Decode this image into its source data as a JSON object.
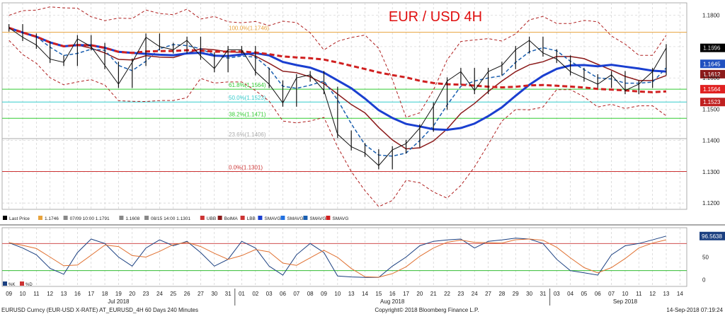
{
  "chart_data": {
    "type": "line",
    "title": "EUR / USD 4H",
    "main_panel": {
      "ylim": [
        1.118,
        1.184
      ],
      "y_ticks": [
        1.12,
        1.13,
        1.14,
        1.15,
        1.16,
        1.17,
        1.18
      ],
      "y_tick_labels": [
        "1.1200",
        "1.1300",
        "1.1400",
        "1.1500",
        "1.1600",
        "1.1700",
        "1.1800"
      ],
      "x_range": [
        0,
        49
      ],
      "price_series": {
        "name": "Last Price",
        "x": [
          0,
          1,
          2,
          3,
          4,
          5,
          6,
          7,
          8,
          9,
          10,
          11,
          12,
          13,
          14,
          15,
          16,
          17,
          18,
          19,
          20,
          21,
          22,
          23,
          24,
          25,
          26,
          27,
          28,
          29,
          30,
          31,
          32,
          33,
          34,
          35,
          36,
          37,
          38,
          39,
          40,
          41,
          42,
          43,
          44,
          45,
          46,
          47,
          48
        ],
        "y": [
          1.176,
          1.173,
          1.1705,
          1.166,
          1.165,
          1.1725,
          1.17,
          1.164,
          1.158,
          1.165,
          1.173,
          1.17,
          1.169,
          1.172,
          1.167,
          1.163,
          1.169,
          1.169,
          1.162,
          1.158,
          1.152,
          1.16,
          1.161,
          1.156,
          1.142,
          1.138,
          1.136,
          1.132,
          1.137,
          1.139,
          1.144,
          1.151,
          1.159,
          1.162,
          1.156,
          1.162,
          1.164,
          1.169,
          1.172,
          1.168,
          1.166,
          1.162,
          1.16,
          1.158,
          1.161,
          1.156,
          1.158,
          1.162,
          1.1696
        ]
      },
      "fib_levels": [
        {
          "label": "100.0%(1.1746)",
          "value": 1.1746,
          "color": "#e8a33c"
        },
        {
          "label": "61.8%(1.1564)",
          "value": 1.1564,
          "color": "#33cc33"
        },
        {
          "label": "50.0%(1.1523)",
          "value": 1.1523,
          "color": "#33cccc"
        },
        {
          "label": "38.2%(1.1471)",
          "value": 1.1471,
          "color": "#33cc33"
        },
        {
          "label": "23.6%(1.1406)",
          "value": 1.1406,
          "color": "#aaaaaa"
        },
        {
          "label": "0.0%(1.1301)",
          "value": 1.1301,
          "color": "#cc3333"
        }
      ],
      "price_tags": [
        {
          "label": "1.1696",
          "value": 1.1696,
          "bg": "#000000"
        },
        {
          "label": "1.1645",
          "value": 1.1645,
          "bg": "#2050c0"
        },
        {
          "label": "1.1612",
          "value": 1.1612,
          "bg": "#8b1a1a"
        },
        {
          "label": "1.1564",
          "value": 1.1564,
          "bg": "#e02020"
        },
        {
          "label": "1.1523",
          "value": 1.1523,
          "bg": "#c02020"
        }
      ],
      "legend": [
        {
          "label": "Last Price",
          "color": "#000000"
        },
        {
          "label": "1.1746",
          "color": "#e8a33c"
        },
        {
          "label": "07/09 10:00 1.1791",
          "color": "#888888"
        },
        {
          "label": "1.1608",
          "color": "#888888"
        },
        {
          "label": "08/15 14:00 1.1301",
          "color": "#888888"
        },
        {
          "label": "UBB",
          "color": "#cc3333"
        },
        {
          "label": "BolMA",
          "color": "#8b1a1a"
        },
        {
          "label": "LBB",
          "color": "#cc3333"
        },
        {
          "label": "SMAVG",
          "color": "#1a3fd0"
        },
        {
          "label": "SMAVG",
          "color": "#2070e0"
        },
        {
          "label": "SMAVG",
          "color": "#1a5fb0"
        },
        {
          "label": "SMAVG",
          "color": "#d02020"
        }
      ]
    },
    "oscillator_panel": {
      "ylim": [
        -15,
        115
      ],
      "y_ticks": [
        0,
        50,
        100
      ],
      "y_tick_labels": [
        "0",
        "50",
        "100"
      ],
      "levels": [
        20,
        80
      ],
      "last_value_label": "96.5638",
      "legend": [
        {
          "label": "%K",
          "color": "#1a3f80"
        },
        {
          "label": "%D",
          "color": "#cc3333"
        }
      ],
      "k_series": [
        82,
        70,
        55,
        25,
        12,
        60,
        90,
        80,
        50,
        30,
        70,
        88,
        75,
        85,
        60,
        30,
        45,
        85,
        70,
        30,
        10,
        55,
        80,
        60,
        8,
        6,
        5,
        5,
        30,
        50,
        75,
        85,
        88,
        90,
        70,
        85,
        88,
        92,
        90,
        80,
        45,
        20,
        15,
        10,
        55,
        75,
        80,
        88,
        96.5638
      ]
    },
    "x_axis": {
      "day_labels": [
        "09",
        "10",
        "11",
        "12",
        "13",
        "16",
        "17",
        "18",
        "19",
        "20",
        "23",
        "24",
        "25",
        "26",
        "27",
        "30",
        "31",
        "01",
        "02",
        "03",
        "06",
        "07",
        "08",
        "09",
        "10",
        "13",
        "14",
        "15",
        "16",
        "17",
        "20",
        "21",
        "22",
        "23",
        "24",
        "27",
        "28",
        "29",
        "30",
        "31",
        "03",
        "04",
        "05",
        "06",
        "07",
        "10",
        "11",
        "12",
        "13",
        "14"
      ],
      "month_labels": [
        {
          "label": "Jul 2018",
          "at": 8
        },
        {
          "label": "Aug 2018",
          "at": 28
        },
        {
          "label": "Sep 2018",
          "at": 45
        }
      ],
      "month_starts": [
        17,
        40
      ]
    },
    "footer": {
      "left": "EURUSD Curncy (EUR-USD X-RATE) AT_EURUSD_4H 60 Days 240 Minutes",
      "center": "Copyright© 2018 Bloomberg Finance L.P.",
      "right": "14-Sep-2018 07:19:24"
    }
  }
}
